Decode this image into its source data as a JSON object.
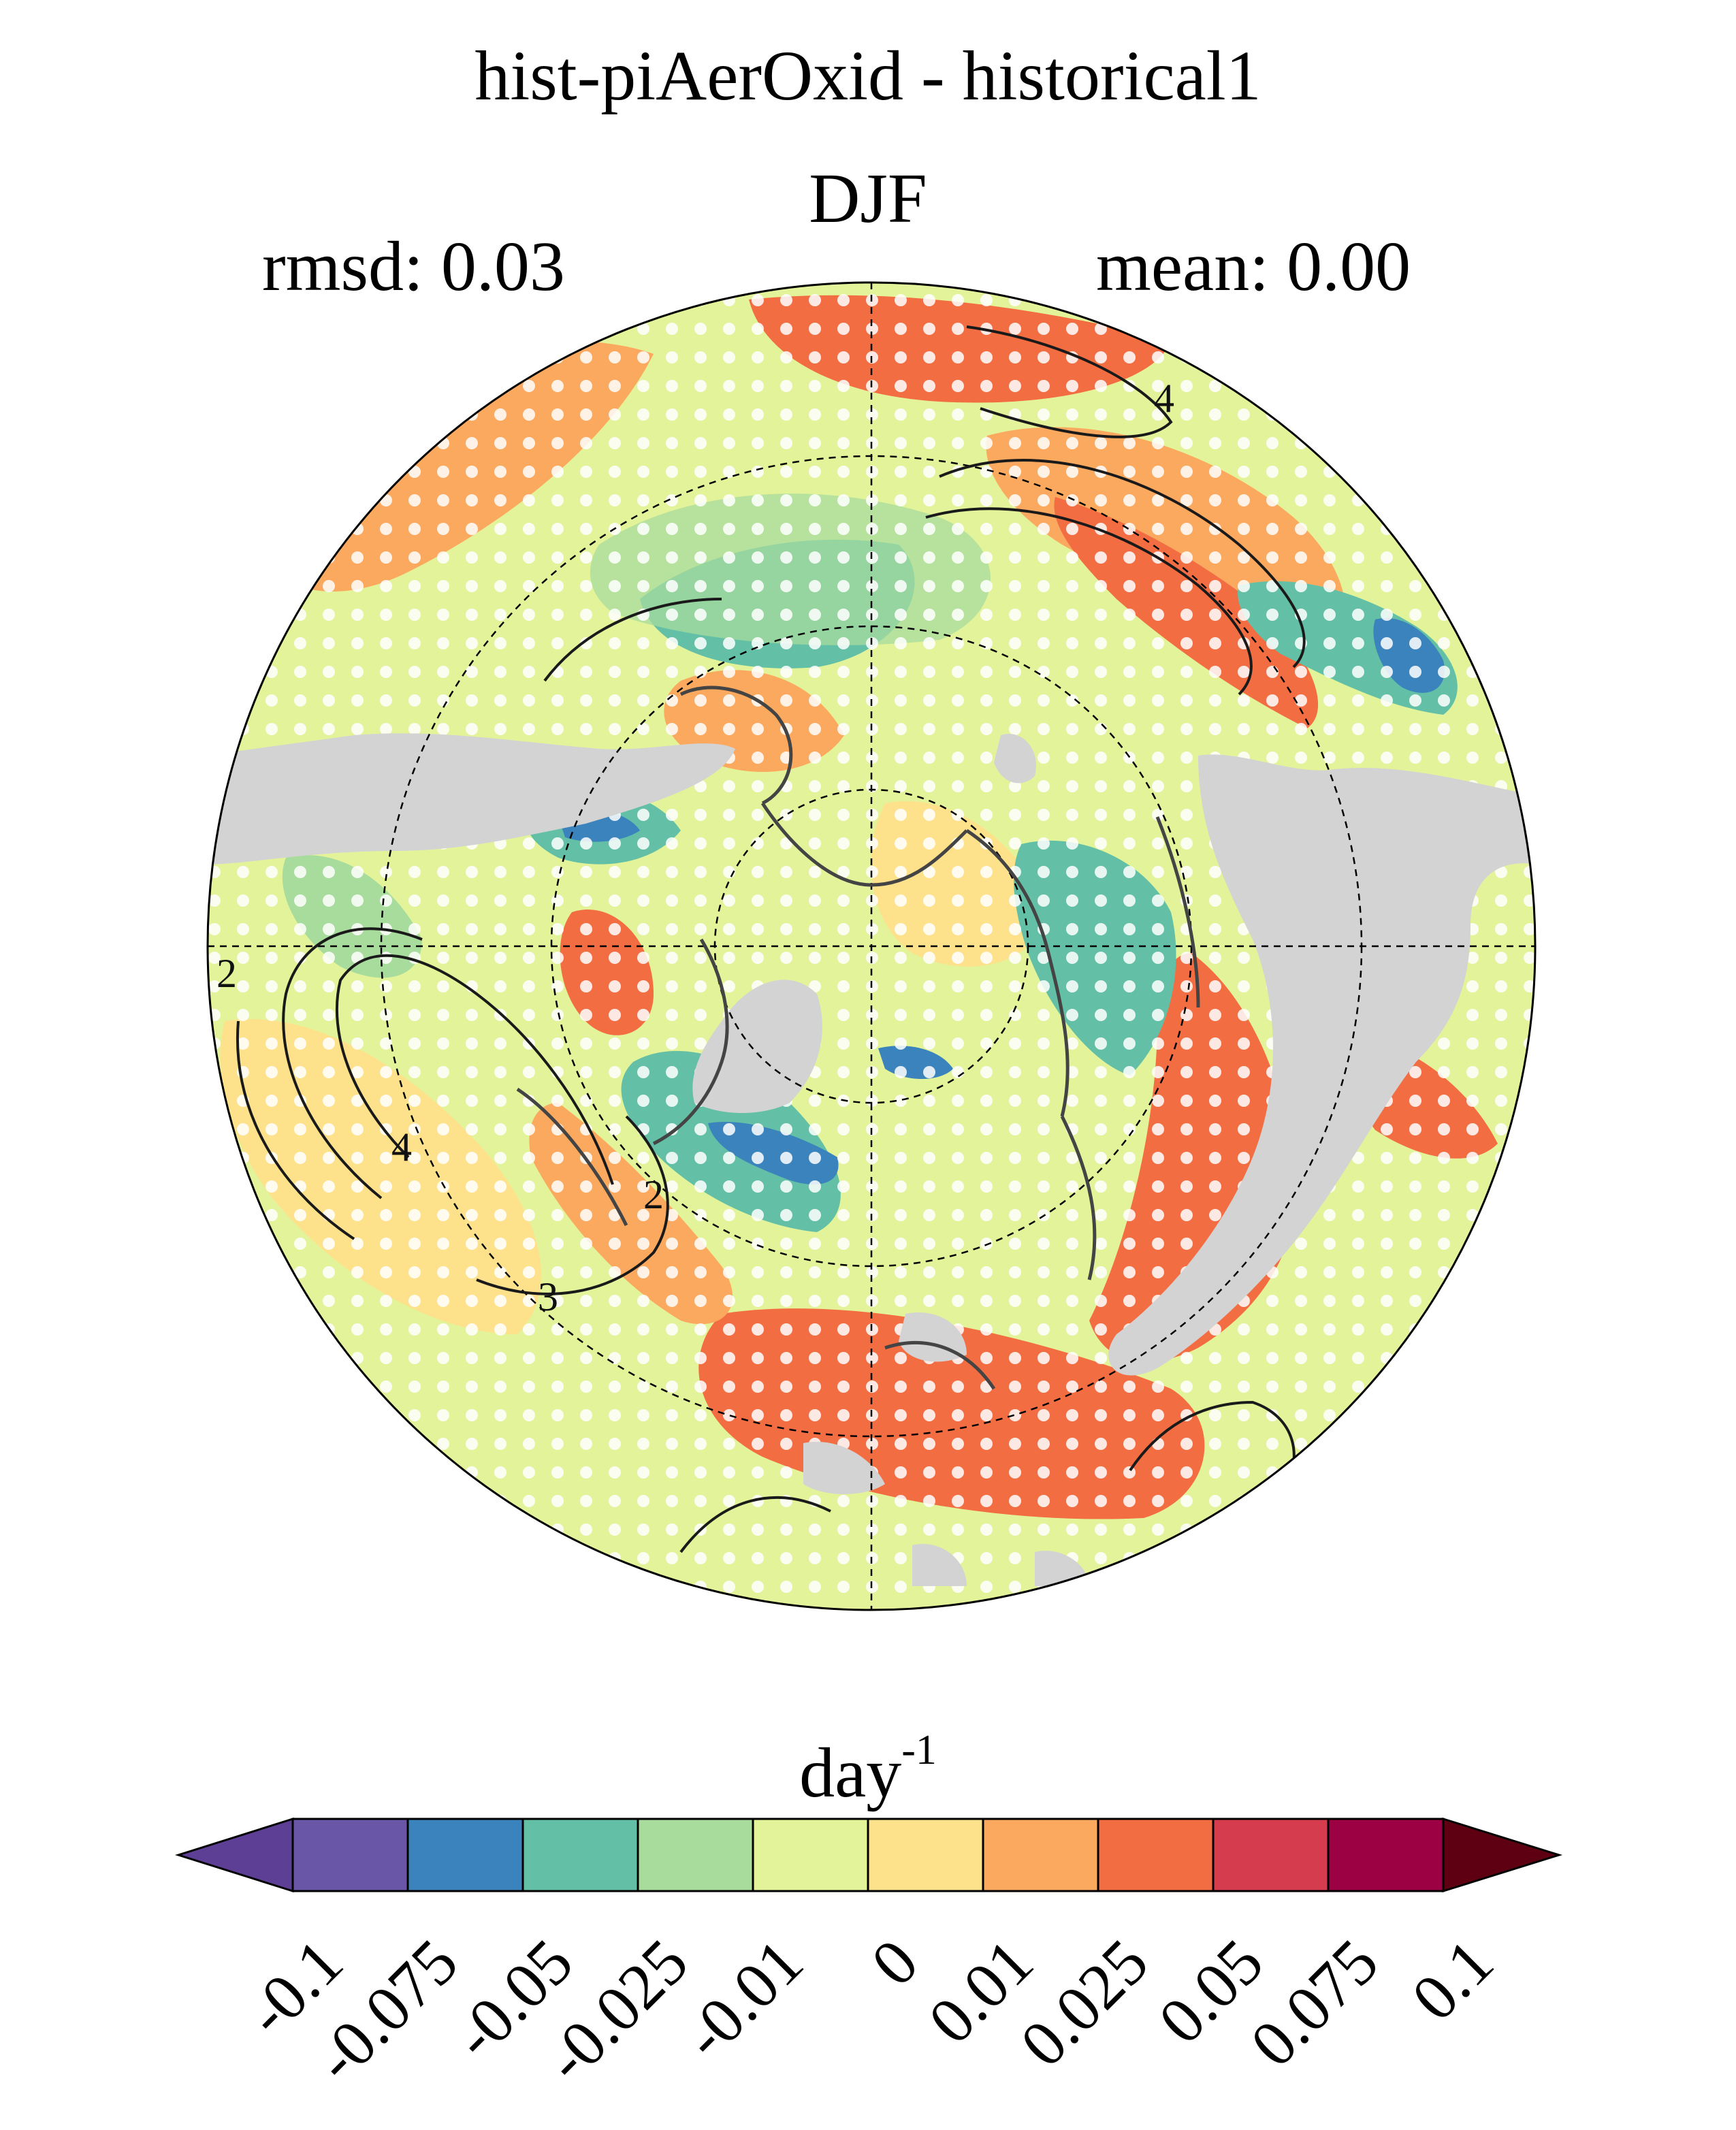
{
  "title": "hist-piAerOxid - historical1",
  "subtitle": "DJF",
  "stats": {
    "rmsd": "rmsd: 0.03",
    "mean": "mean: 0.00"
  },
  "contour_labels": [
    "4",
    "4",
    "2",
    "3",
    "2"
  ],
  "colorbar": {
    "units_base": "day",
    "units_exp": "-1",
    "ticks": [
      "-0.1",
      "-0.075",
      "-0.05",
      "-0.025",
      "-0.01",
      "0",
      "0.01",
      "0.025",
      "0.05",
      "0.075",
      "0.1"
    ],
    "colors": [
      "#5e3f96",
      "#6a56a6",
      "#3b83bc",
      "#63c0a6",
      "#a7dc9d",
      "#e3f39a",
      "#fde18b",
      "#fba95f",
      "#f36d43",
      "#d53d4e",
      "#9b0143",
      "#5e0011"
    ]
  },
  "map_colors": {
    "land_mask": "#d3d3d3",
    "pos_strong": "#f36d43",
    "pos_mid": "#fba95f",
    "pos_weak": "#fde18b",
    "neutral": "#e3f39a",
    "neg_weak": "#a7dc9d",
    "neg_mid": "#63c0a6",
    "neg_strong": "#3b83bc"
  }
}
